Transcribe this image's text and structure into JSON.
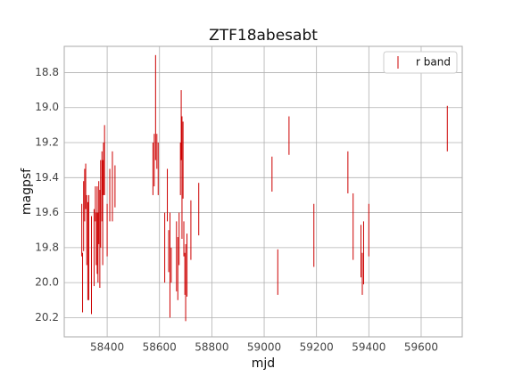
{
  "chart_data": {
    "type": "errorbar",
    "title": "ZTF18abesabt",
    "xlabel": "mjd",
    "ylabel": "magpsf",
    "x": [
      58303,
      58306,
      58310,
      58314,
      58318,
      58322,
      58326,
      58330,
      58340,
      58350,
      58355,
      58358,
      58362,
      58365,
      58368,
      58372,
      58375,
      58380,
      58383,
      58386,
      58390,
      58400,
      58410,
      58420,
      58430,
      58575,
      58580,
      58585,
      58590,
      58595,
      58620,
      58630,
      58635,
      58640,
      58645,
      58665,
      58670,
      58675,
      58680,
      58683,
      58686,
      58690,
      58693,
      58697,
      58700,
      58705,
      58720,
      58750,
      59030,
      59052,
      59095,
      59190,
      59320,
      59340,
      59370,
      59375,
      59380,
      59400,
      59700
    ],
    "series": [
      {
        "name": "r band",
        "color": "#cc0000",
        "values": [
          19.7,
          20.0,
          19.62,
          19.5,
          19.45,
          19.7,
          19.82,
          19.8,
          19.9,
          19.8,
          19.55,
          19.75,
          19.7,
          19.8,
          19.6,
          19.75,
          19.55,
          19.45,
          19.6,
          19.35,
          19.3,
          19.7,
          19.5,
          19.45,
          19.45,
          19.35,
          19.3,
          19.0,
          19.25,
          19.35,
          19.8,
          19.5,
          19.82,
          19.9,
          19.9,
          19.85,
          19.92,
          19.75,
          19.35,
          19.1,
          19.4,
          19.3,
          19.75,
          19.95,
          20.0,
          19.9,
          19.7,
          19.58,
          19.38,
          19.94,
          19.16,
          19.73,
          19.37,
          19.68,
          19.82,
          19.95,
          19.83,
          19.7,
          19.12
        ],
        "errors": [
          0.15,
          0.17,
          0.2,
          0.15,
          0.13,
          0.2,
          0.28,
          0.3,
          0.28,
          0.22,
          0.1,
          0.15,
          0.25,
          0.2,
          0.18,
          0.28,
          0.25,
          0.2,
          0.3,
          0.15,
          0.2,
          0.15,
          0.15,
          0.2,
          0.12,
          0.15,
          0.15,
          0.3,
          0.1,
          0.15,
          0.2,
          0.15,
          0.12,
          0.3,
          0.1,
          0.2,
          0.18,
          0.15,
          0.15,
          0.2,
          0.35,
          0.22,
          0.1,
          0.12,
          0.22,
          0.18,
          0.17,
          0.15,
          0.1,
          0.13,
          0.11,
          0.18,
          0.12,
          0.19,
          0.15,
          0.12,
          0.18,
          0.15,
          0.13
        ]
      }
    ],
    "xlim": [
      58236,
      59757
    ],
    "xticks": [
      58400,
      58600,
      58800,
      59000,
      59200,
      59400,
      59600
    ],
    "ylim": [
      18.65,
      20.31
    ],
    "y_inverted": true,
    "yticks": [
      {
        "value": 18.8,
        "label": "18.8"
      },
      {
        "value": 19.0,
        "label": "19.0"
      },
      {
        "value": 19.2,
        "label": "19.2"
      },
      {
        "value": 19.4,
        "label": "19.4"
      },
      {
        "value": 19.6,
        "label": "19.6"
      },
      {
        "value": 19.8,
        "label": "19.8"
      },
      {
        "value": 20.0,
        "label": "20.0"
      },
      {
        "value": 20.2,
        "label": "20.2"
      }
    ],
    "grid": true,
    "legend": "upper right"
  }
}
